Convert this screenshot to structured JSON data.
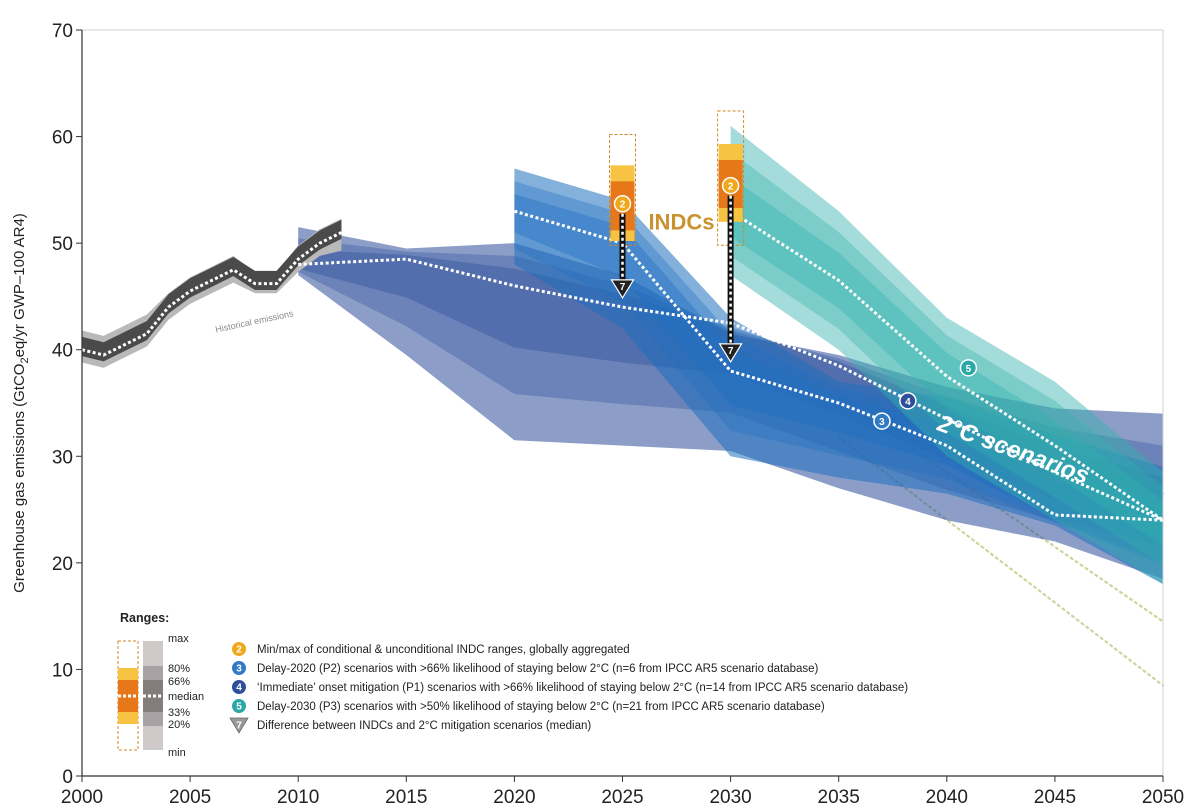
{
  "chart_data": {
    "type": "area",
    "ylabel": "Greenhouse gas emissions (GtCO2eq/yr GWP–100 AR4)",
    "ylabel_parts": {
      "pre": "Greenhouse gas emissions (GtCO",
      "sub": "2",
      "post": "eq/yr GWP–100 AR4)"
    },
    "xlim": [
      2000,
      2050
    ],
    "ylim": [
      0,
      70
    ],
    "xticks": [
      2000,
      2005,
      2010,
      2015,
      2020,
      2025,
      2030,
      2035,
      2040,
      2045,
      2050
    ],
    "yticks": [
      0,
      10,
      20,
      30,
      40,
      50,
      60,
      70
    ],
    "grid": false,
    "annotations": {
      "historical": "Historical emissions",
      "indcs": "INDCs",
      "scenarios": "2°C scenarios"
    },
    "series": [
      {
        "id": "historical",
        "color": "#4a4a4a",
        "x": [
          2000,
          2001,
          2002,
          2003,
          2004,
          2005,
          2006,
          2007,
          2008,
          2009,
          2010,
          2011,
          2012
        ],
        "min": [
          38.8,
          38.3,
          39.3,
          40.3,
          42.8,
          44.3,
          45.3,
          46.3,
          45.3,
          45.3,
          47.3,
          48.8,
          49.3
        ],
        "max": [
          41.8,
          41.3,
          42.3,
          43.3,
          45.3,
          46.8,
          47.8,
          48.8,
          47.3,
          47.3,
          49.8,
          51.3,
          52.3
        ],
        "median": [
          40.0,
          39.5,
          40.5,
          41.5,
          44.0,
          45.5,
          46.5,
          47.5,
          46.2,
          46.2,
          48.5,
          50.0,
          51.0
        ]
      },
      {
        "id": "P1",
        "color": "#2e4f9a",
        "x": [
          2010,
          2015,
          2020,
          2025,
          2030,
          2035,
          2040,
          2045,
          2050
        ],
        "min": [
          47.0,
          39.5,
          31.5,
          31.0,
          30.5,
          27.0,
          24.0,
          22.0,
          18.5
        ],
        "max": [
          51.5,
          49.5,
          50.0,
          47.0,
          41.5,
          39.5,
          36.5,
          34.5,
          34.0
        ],
        "median": [
          48.0,
          48.5,
          46.0,
          44.0,
          42.5,
          38.5,
          33.5,
          28.5,
          24.0
        ]
      },
      {
        "id": "P2",
        "color": "#1f6fc0",
        "x": [
          2020,
          2025,
          2030,
          2035,
          2040,
          2045,
          2050
        ],
        "min": [
          48.0,
          42.0,
          30.0,
          28.0,
          26.5,
          23.5,
          18.0
        ],
        "max": [
          57.0,
          54.0,
          43.0,
          37.0,
          35.5,
          32.0,
          29.0
        ],
        "median": [
          53.0,
          50.0,
          38.0,
          35.0,
          31.0,
          24.5,
          24.0
        ]
      },
      {
        "id": "P3",
        "color": "#33b1ad",
        "x": [
          2030,
          2035,
          2040,
          2045,
          2050
        ],
        "min": [
          47.0,
          40.0,
          30.0,
          24.0,
          18.0
        ],
        "max": [
          61.0,
          53.0,
          43.0,
          37.0,
          28.5
        ],
        "median": [
          53.0,
          46.5,
          37.5,
          31.0,
          24.0
        ]
      }
    ],
    "indc_boxes": [
      {
        "year": 2025,
        "min": 50.2,
        "p20": 51.2,
        "p80": 55.8,
        "max": 57.3,
        "outer_min": 49.8,
        "outer_max": 60.2,
        "median": 53.7,
        "arrow_to": 45.8
      },
      {
        "year": 2030,
        "min": 52.0,
        "p20": 53.3,
        "p80": 57.8,
        "max": 59.3,
        "outer_min": 49.8,
        "outer_max": 62.4,
        "median": 55.4,
        "arrow_to": 39.8
      }
    ],
    "scenario_markers": [
      {
        "num": "3",
        "x": 2037,
        "y": 33.3,
        "color": "#2f7cc4"
      },
      {
        "num": "4",
        "x": 2038.2,
        "y": 35.2,
        "color": "#2e4f9a"
      },
      {
        "num": "5",
        "x": 2041,
        "y": 38.3,
        "color": "#2aa7a6"
      }
    ],
    "legend": {
      "title": "Ranges:",
      "range_labels": [
        "max",
        "80%",
        "66%",
        "median",
        "33%",
        "20%",
        "min"
      ],
      "entries": [
        {
          "num": "2",
          "color": "#f0a81a",
          "text": "Min/max of conditional & unconditional INDC ranges, globally aggregated"
        },
        {
          "num": "3",
          "color": "#2f7cc4",
          "text": "Delay-2020 (P2) scenarios with >66% likelihood of staying below 2°C (n=6 from IPCC AR5 scenario database)"
        },
        {
          "num": "4",
          "color": "#2e4f9a",
          "text": "‘Immediate’ onset mitigation (P1) scenarios with >66% likelihood of staying below 2°C (n=14 from IPCC AR5 scenario database)"
        },
        {
          "num": "5",
          "color": "#2aa7a6",
          "text": "Delay-2030 (P3) scenarios with >50% likelihood of staying below 2°C (n=21 from IPCC AR5 scenario database)"
        },
        {
          "num": "7",
          "color": "#999999",
          "text": "Difference between INDCs and 2°C mitigation scenarios (median)"
        }
      ]
    },
    "colors": {
      "indc_orange": "#f0a81a",
      "indc_light": "#f6c342",
      "indc_dark": "#e6781a",
      "range_gray": "#b0a6a8",
      "trend_green": "#c8d89a"
    }
  }
}
